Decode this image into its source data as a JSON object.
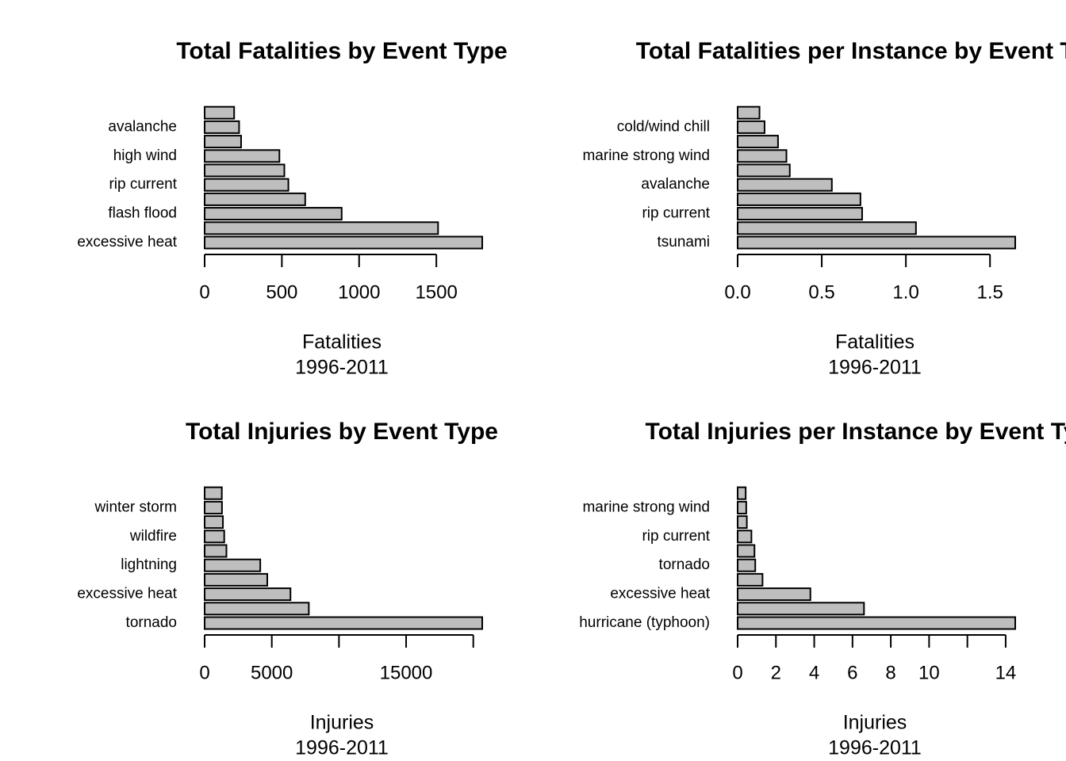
{
  "chart_data": [
    {
      "type": "bar",
      "orientation": "horizontal",
      "title": "Total Fatalities by Event Type",
      "xlabel": "Fatalities",
      "subxlabel": "1996-2011",
      "categories": [
        "excessive heat",
        "",
        "flash flood",
        "",
        "rip current",
        "",
        "high wind",
        "",
        "avalanche",
        ""
      ],
      "values": [
        1797,
        1511,
        887,
        651,
        542,
        516,
        484,
        236,
        223,
        191
      ],
      "xticks": [
        0,
        500,
        1000,
        1500
      ],
      "xtick_labels": [
        "0",
        "500",
        "1000",
        "1500"
      ],
      "xlim": [
        0,
        1797
      ]
    },
    {
      "type": "bar",
      "orientation": "horizontal",
      "title": "Total Fatalities per Instance by Event Type",
      "xlabel": "Fatalities",
      "subxlabel": "1996-2011",
      "categories": [
        "tsunami",
        "",
        "rip current",
        "",
        "avalanche",
        "",
        "marine strong wind",
        "",
        "cold/wind chill",
        ""
      ],
      "values": [
        1.65,
        1.06,
        0.74,
        0.73,
        0.56,
        0.31,
        0.29,
        0.24,
        0.16,
        0.13
      ],
      "xticks": [
        0,
        0.5,
        1.0,
        1.5
      ],
      "xtick_labels": [
        "0.0",
        "0.5",
        "1.0",
        "1.5"
      ],
      "xlim": [
        0,
        1.65
      ]
    },
    {
      "type": "bar",
      "orientation": "horizontal",
      "title": "Total Injuries by Event Type",
      "xlabel": "Injuries",
      "subxlabel": "1996-2011",
      "categories": [
        "tornado",
        "",
        "excessive heat",
        "",
        "lightning",
        "",
        "wildfire",
        "",
        "winter storm",
        ""
      ],
      "values": [
        20667,
        7756,
        6391,
        4664,
        4141,
        1623,
        1458,
        1361,
        1292,
        1280
      ],
      "xticks": [
        0,
        5000,
        10000,
        15000,
        20000
      ],
      "xtick_labels": [
        "0",
        "5000",
        "",
        "15000",
        ""
      ],
      "xlim": [
        0,
        20667
      ]
    },
    {
      "type": "bar",
      "orientation": "horizontal",
      "title": "Total Injuries per Instance by Event Type",
      "xlabel": "Injuries",
      "subxlabel": "1996-2011",
      "categories": [
        "hurricane (typhoon)",
        "",
        "excessive heat",
        "",
        "tornado",
        "",
        "rip current",
        "",
        "marine strong wind",
        ""
      ],
      "values": [
        14.5,
        6.6,
        3.8,
        1.3,
        0.92,
        0.88,
        0.72,
        0.48,
        0.45,
        0.42
      ],
      "xticks": [
        0,
        2,
        4,
        6,
        8,
        10,
        12,
        14
      ],
      "xtick_labels": [
        "0",
        "2",
        "4",
        "6",
        "8",
        "10",
        "",
        "14"
      ],
      "xlim": [
        0,
        14.5
      ]
    }
  ]
}
